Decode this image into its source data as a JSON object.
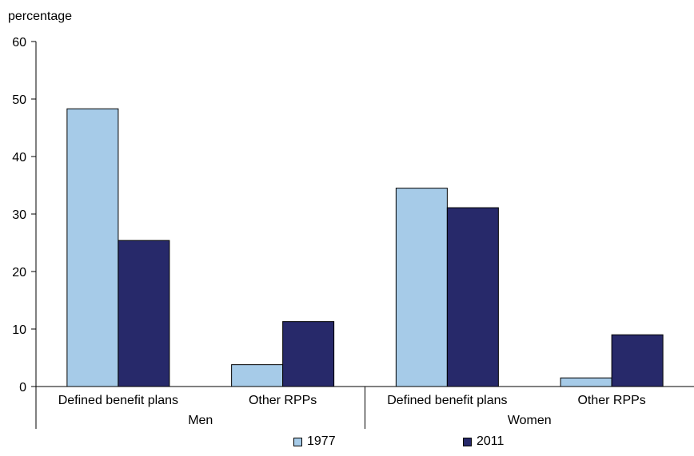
{
  "chart_data": {
    "type": "bar",
    "ylabel": "percentage",
    "ylim": [
      0,
      60
    ],
    "yticks": [
      0,
      10,
      20,
      30,
      40,
      50,
      60
    ],
    "groups": [
      "Men",
      "Women"
    ],
    "categories": [
      {
        "group": "Men",
        "label": "Defined benefit plans"
      },
      {
        "group": "Men",
        "label": "Other RPPs"
      },
      {
        "group": "Women",
        "label": "Defined benefit plans"
      },
      {
        "group": "Women",
        "label": "Other RPPs"
      }
    ],
    "series": [
      {
        "name": "1977",
        "color": "#a6cbe8",
        "values": [
          48.3,
          3.8,
          34.5,
          1.5
        ]
      },
      {
        "name": "2011",
        "color": "#27296a",
        "values": [
          25.4,
          11.3,
          31.1,
          9.0
        ]
      }
    ],
    "legend_position": "bottom",
    "grid": false
  }
}
